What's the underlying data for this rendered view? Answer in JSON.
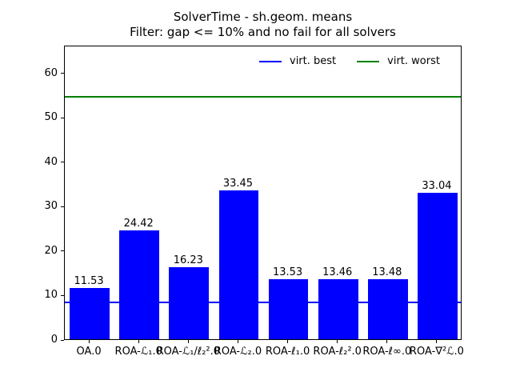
{
  "chart_data": {
    "type": "bar",
    "title": "SolverTime - sh.geom. means",
    "subtitle": "Filter: gap <= 10% and no fail for all solvers",
    "categories": [
      "OA.0",
      "ROA-ℒ₁.0",
      "ROA-ℒ₁/ℓ₂².0",
      "ROA-ℒ₂.0",
      "ROA-ℓ₁.0",
      "ROA-ℓ₂².0",
      "ROA-ℓ∞.0",
      "ROA-∇²ℒ.0"
    ],
    "values": [
      11.53,
      24.42,
      16.23,
      33.45,
      13.53,
      13.46,
      13.48,
      33.04
    ],
    "bar_labels": [
      "11.53",
      "24.42",
      "16.23",
      "33.45",
      "13.53",
      "13.46",
      "13.48",
      "33.04"
    ],
    "bar_color": "#0000ff",
    "hlines": [
      {
        "label": "virt. best",
        "value": 8.6,
        "color": "#0000ff"
      },
      {
        "label": "virt. worst",
        "value": 55.0,
        "color": "#008000"
      }
    ],
    "legend": {
      "position": "upper center",
      "frame": false,
      "entries": [
        {
          "label": "virt. best",
          "color": "#0000ff"
        },
        {
          "label": "virt. worst",
          "color": "#008000"
        }
      ]
    },
    "xlabel": "",
    "ylabel": "",
    "ylim": [
      0,
      66.3
    ],
    "yticks": [
      0,
      10,
      20,
      30,
      40,
      50,
      60
    ],
    "grid": false,
    "axis_color": "#000000",
    "background": "#ffffff"
  }
}
